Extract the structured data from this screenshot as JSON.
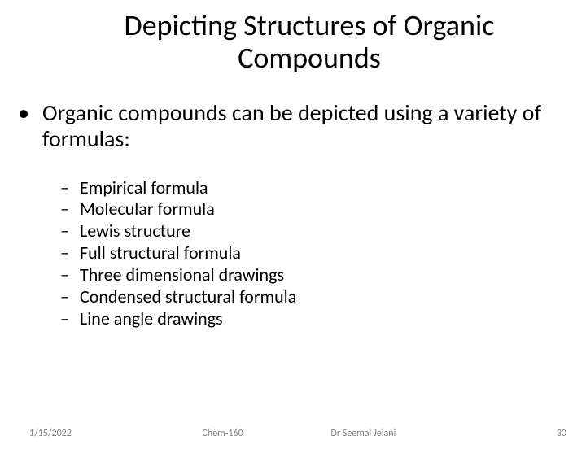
{
  "title": "Depicting Structures of Organic Compounds",
  "main_bullet": "Organic compounds can be depicted using a variety of formulas:",
  "sub_bullets": [
    "Empirical formula",
    "Molecular formula",
    "Lewis structure",
    "Full structural formula",
    "Three dimensional drawings",
    "Condensed structural formula",
    "Line angle drawings"
  ],
  "footer": {
    "date": "1/15/2022",
    "center": "Chem-160",
    "author": "Dr Seemal Jelani",
    "page": "30"
  },
  "colors": {
    "text": "#000000",
    "footer": "#7f7f7f",
    "background": "#ffffff"
  },
  "typography": {
    "title_fontsize": 36,
    "l1_fontsize": 28,
    "l2_fontsize": 22,
    "footer_fontsize": 12,
    "font_family": "Calibri"
  },
  "markers": {
    "l1": "•",
    "l2": "–"
  }
}
